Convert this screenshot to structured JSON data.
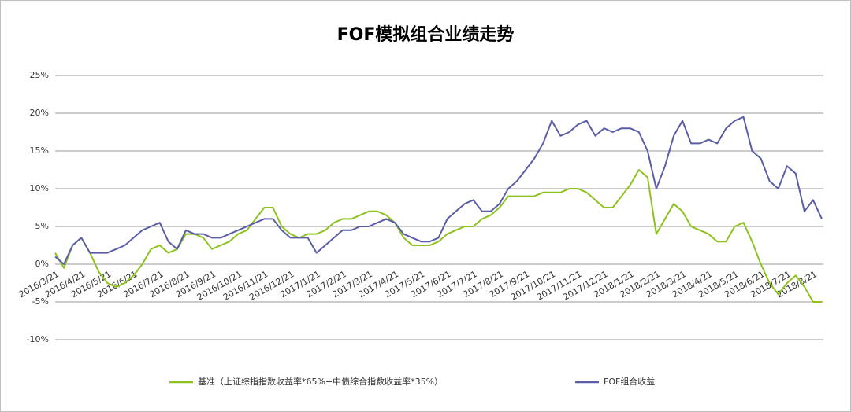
{
  "chart_data": {
    "type": "line",
    "title": "FOF模拟组合业绩走势",
    "categories": [
      "2016/3/21",
      null,
      null,
      "2016/4/21",
      null,
      null,
      "2016/5/21",
      null,
      null,
      "2016/6/21",
      null,
      null,
      "2016/7/21",
      null,
      null,
      "2016/8/21",
      null,
      null,
      "2016/9/21",
      null,
      null,
      "2016/10/21",
      null,
      null,
      "2016/11/21",
      null,
      null,
      "2016/12/21",
      null,
      null,
      "2017/1/21",
      null,
      null,
      "2017/2/21",
      null,
      null,
      "2017/3/21",
      null,
      null,
      "2017/4/21",
      null,
      null,
      "2017/5/21",
      null,
      null,
      "2017/6/21",
      null,
      null,
      "2017/7/21",
      null,
      null,
      "2017/8/21",
      null,
      null,
      "2017/9/21",
      null,
      null,
      "2017/10/21",
      null,
      null,
      "2017/11/21",
      null,
      null,
      "2017/12/21",
      null,
      null,
      "2018/1/21",
      null,
      null,
      "2018/2/21",
      null,
      null,
      "2018/3/21",
      null,
      null,
      "2018/4/21",
      null,
      null,
      "2018/5/21",
      null,
      null,
      "2018/6/21",
      null,
      null,
      "2018/7/21",
      null,
      null,
      "2018/8/21",
      null
    ],
    "series": [
      {
        "name": "基准（上证综指指数收益率*65%+中债综合指数收益率*35%）",
        "color": "#8dc21f",
        "values": [
          1.5,
          -0.5,
          2.5,
          3.5,
          1.5,
          -1,
          -2.5,
          -3,
          -2.5,
          -1.5,
          0,
          2,
          2.5,
          1.5,
          2,
          4,
          4,
          3.5,
          2,
          2.5,
          3,
          4,
          4.5,
          6,
          7.5,
          7.5,
          5,
          4,
          3.5,
          4,
          4,
          4.5,
          5.5,
          6,
          6,
          6.5,
          7,
          7,
          6.5,
          5.5,
          3.5,
          2.5,
          2.5,
          2.5,
          3,
          4,
          4.5,
          5,
          5,
          6,
          6.5,
          7.5,
          9,
          9,
          9,
          9,
          9.5,
          9.5,
          9.5,
          10,
          10,
          9.5,
          8.5,
          7.5,
          7.5,
          9,
          10.5,
          12.5,
          11.5,
          4,
          6,
          8,
          7,
          5,
          4.5,
          4,
          3,
          3,
          5,
          5.5,
          3,
          0,
          -2.5,
          -4,
          -2.5,
          -1.5,
          -3,
          -5,
          -5
        ]
      },
      {
        "name": "FOF组合收益",
        "color": "#5b5ea6",
        "values": [
          1,
          0,
          2.5,
          3.5,
          1.5,
          1.5,
          1.5,
          2,
          2.5,
          3.5,
          4.5,
          5,
          5.5,
          3,
          2,
          4.5,
          4,
          4,
          3.5,
          3.5,
          4,
          4.5,
          5,
          5.5,
          6,
          6,
          4.5,
          3.5,
          3.5,
          3.5,
          1.5,
          2.5,
          3.5,
          4.5,
          4.5,
          5,
          5,
          5.5,
          6,
          5.5,
          4,
          3.5,
          3,
          3,
          3.5,
          6,
          7,
          8,
          8.5,
          7,
          7,
          8,
          10,
          11,
          12.5,
          14,
          16,
          19,
          17,
          17.5,
          18.5,
          19,
          17,
          18,
          17.5,
          18,
          18,
          17.5,
          15,
          10,
          13,
          17,
          19,
          16,
          16,
          16.5,
          16,
          18,
          19,
          19.5,
          15,
          14,
          11,
          10,
          13,
          12,
          7,
          8.5,
          6
        ]
      }
    ],
    "ylim": [
      -10,
      25
    ],
    "yticks": [
      {
        "value": -10,
        "label": "-10%"
      },
      {
        "value": -5,
        "label": "-5%"
      },
      {
        "value": 0,
        "label": "0%"
      },
      {
        "value": 5,
        "label": "5%"
      },
      {
        "value": 10,
        "label": "10%"
      },
      {
        "value": 15,
        "label": "15%"
      },
      {
        "value": 20,
        "label": "20%"
      },
      {
        "value": 25,
        "label": "25%"
      }
    ],
    "grid": true,
    "legend": "bottom"
  }
}
